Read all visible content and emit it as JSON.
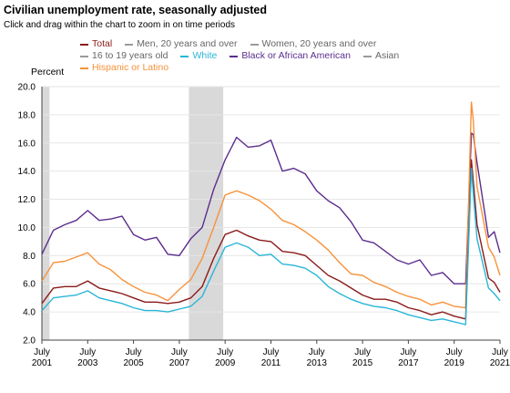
{
  "header": {
    "title": "Civilian unemployment rate, seasonally adjusted",
    "subtitle": "Click and drag within the chart to zoom in on time periods"
  },
  "legend": [
    {
      "label": "Total",
      "color": "#8b1a1a",
      "active": true
    },
    {
      "label": "Men, 20 years and over",
      "color": "#9a9a9a",
      "active": false
    },
    {
      "label": "Women, 20 years and over",
      "color": "#9a9a9a",
      "active": false
    },
    {
      "label": "16 to 19 years old",
      "color": "#9a9a9a",
      "active": false
    },
    {
      "label": "White",
      "color": "#29b6d8",
      "active": true
    },
    {
      "label": "Black or African American",
      "color": "#5b2d8e",
      "active": true
    },
    {
      "label": "Asian",
      "color": "#9a9a9a",
      "active": false
    },
    {
      "label": "Hispanic or Latino",
      "color": "#f7923a",
      "active": true
    }
  ],
  "chart_data": {
    "type": "line",
    "ylabel": "Percent",
    "ylim": [
      2.0,
      20.0
    ],
    "yticks": [
      "2.0",
      "4.0",
      "6.0",
      "8.0",
      "10.0",
      "12.0",
      "14.0",
      "16.0",
      "18.0",
      "20.0"
    ],
    "xlim": [
      "2001-07",
      "2021-07"
    ],
    "xticks": [
      {
        "month": "July",
        "year": "2001"
      },
      {
        "month": "July",
        "year": "2003"
      },
      {
        "month": "July",
        "year": "2005"
      },
      {
        "month": "July",
        "year": "2007"
      },
      {
        "month": "July",
        "year": "2009"
      },
      {
        "month": "July",
        "year": "2011"
      },
      {
        "month": "July",
        "year": "2013"
      },
      {
        "month": "July",
        "year": "2015"
      },
      {
        "month": "July",
        "year": "2017"
      },
      {
        "month": "July",
        "year": "2019"
      },
      {
        "month": "July",
        "year": "2021"
      }
    ],
    "recessions": [
      [
        "2001-03",
        "2001-11"
      ],
      [
        "2007-12",
        "2009-06"
      ]
    ],
    "series": [
      {
        "name": "Black or African American",
        "color": "#5b2d8e",
        "x": [
          "2001-07",
          "2002-01",
          "2002-07",
          "2003-01",
          "2003-07",
          "2004-01",
          "2004-07",
          "2005-01",
          "2005-07",
          "2006-01",
          "2006-07",
          "2007-01",
          "2007-07",
          "2008-01",
          "2008-07",
          "2009-01",
          "2009-07",
          "2010-01",
          "2010-07",
          "2011-01",
          "2011-07",
          "2012-01",
          "2012-07",
          "2013-01",
          "2013-07",
          "2014-01",
          "2014-07",
          "2015-01",
          "2015-07",
          "2016-01",
          "2016-07",
          "2017-01",
          "2017-07",
          "2018-01",
          "2018-07",
          "2019-01",
          "2019-07",
          "2020-01",
          "2020-04",
          "2020-05",
          "2020-07",
          "2021-01",
          "2021-04",
          "2021-07"
        ],
        "y": [
          8.1,
          9.8,
          10.2,
          10.5,
          11.2,
          10.5,
          10.6,
          10.8,
          9.5,
          9.1,
          9.3,
          8.1,
          8.0,
          9.2,
          10.0,
          12.7,
          14.8,
          16.4,
          15.7,
          15.8,
          16.2,
          14.0,
          14.2,
          13.8,
          12.6,
          11.9,
          11.4,
          10.4,
          9.1,
          8.9,
          8.3,
          7.7,
          7.4,
          7.7,
          6.6,
          6.8,
          6.0,
          6.0,
          16.7,
          16.6,
          14.6,
          9.3,
          9.7,
          8.2
        ]
      },
      {
        "name": "Hispanic or Latino",
        "color": "#f7923a",
        "x": [
          "2001-07",
          "2002-01",
          "2002-07",
          "2003-01",
          "2003-07",
          "2004-01",
          "2004-07",
          "2005-01",
          "2005-07",
          "2006-01",
          "2006-07",
          "2007-01",
          "2007-07",
          "2008-01",
          "2008-07",
          "2009-01",
          "2009-07",
          "2010-01",
          "2010-07",
          "2011-01",
          "2011-07",
          "2012-01",
          "2012-07",
          "2013-01",
          "2013-07",
          "2014-01",
          "2014-07",
          "2015-01",
          "2015-07",
          "2016-01",
          "2016-07",
          "2017-01",
          "2017-07",
          "2018-01",
          "2018-07",
          "2019-01",
          "2019-07",
          "2020-01",
          "2020-04",
          "2020-05",
          "2020-07",
          "2021-01",
          "2021-04",
          "2021-07"
        ],
        "y": [
          6.2,
          7.5,
          7.6,
          7.9,
          8.2,
          7.4,
          7.0,
          6.3,
          5.8,
          5.4,
          5.2,
          4.8,
          5.6,
          6.3,
          7.8,
          10.0,
          12.3,
          12.6,
          12.3,
          11.9,
          11.3,
          10.5,
          10.2,
          9.7,
          9.1,
          8.4,
          7.5,
          6.7,
          6.6,
          6.1,
          5.8,
          5.4,
          5.1,
          4.9,
          4.5,
          4.7,
          4.4,
          4.3,
          18.9,
          17.6,
          12.9,
          8.6,
          7.9,
          6.6
        ]
      },
      {
        "name": "Total",
        "color": "#8b1a1a",
        "x": [
          "2001-07",
          "2002-01",
          "2002-07",
          "2003-01",
          "2003-07",
          "2004-01",
          "2004-07",
          "2005-01",
          "2005-07",
          "2006-01",
          "2006-07",
          "2007-01",
          "2007-07",
          "2008-01",
          "2008-07",
          "2009-01",
          "2009-07",
          "2010-01",
          "2010-07",
          "2011-01",
          "2011-07",
          "2012-01",
          "2012-07",
          "2013-01",
          "2013-07",
          "2014-01",
          "2014-07",
          "2015-01",
          "2015-07",
          "2016-01",
          "2016-07",
          "2017-01",
          "2017-07",
          "2018-01",
          "2018-07",
          "2019-01",
          "2019-07",
          "2020-01",
          "2020-04",
          "2020-05",
          "2020-07",
          "2021-01",
          "2021-04",
          "2021-07"
        ],
        "y": [
          4.6,
          5.7,
          5.8,
          5.8,
          6.2,
          5.7,
          5.5,
          5.3,
          5.0,
          4.7,
          4.7,
          4.6,
          4.7,
          5.0,
          5.8,
          7.8,
          9.5,
          9.8,
          9.4,
          9.1,
          9.0,
          8.3,
          8.2,
          8.0,
          7.3,
          6.6,
          6.2,
          5.7,
          5.2,
          4.9,
          4.9,
          4.7,
          4.3,
          4.1,
          3.8,
          4.0,
          3.7,
          3.5,
          14.8,
          13.3,
          10.2,
          6.4,
          6.1,
          5.4
        ]
      },
      {
        "name": "White",
        "color": "#29b6d8",
        "x": [
          "2001-07",
          "2002-01",
          "2002-07",
          "2003-01",
          "2003-07",
          "2004-01",
          "2004-07",
          "2005-01",
          "2005-07",
          "2006-01",
          "2006-07",
          "2007-01",
          "2007-07",
          "2008-01",
          "2008-07",
          "2009-01",
          "2009-07",
          "2010-01",
          "2010-07",
          "2011-01",
          "2011-07",
          "2012-01",
          "2012-07",
          "2013-01",
          "2013-07",
          "2014-01",
          "2014-07",
          "2015-01",
          "2015-07",
          "2016-01",
          "2016-07",
          "2017-01",
          "2017-07",
          "2018-01",
          "2018-07",
          "2019-01",
          "2019-07",
          "2020-01",
          "2020-04",
          "2020-05",
          "2020-07",
          "2021-01",
          "2021-04",
          "2021-07"
        ],
        "y": [
          4.1,
          5.0,
          5.1,
          5.2,
          5.5,
          5.0,
          4.8,
          4.6,
          4.3,
          4.1,
          4.1,
          4.0,
          4.2,
          4.4,
          5.1,
          6.9,
          8.6,
          8.9,
          8.6,
          8.0,
          8.1,
          7.4,
          7.3,
          7.1,
          6.6,
          5.8,
          5.3,
          4.9,
          4.6,
          4.4,
          4.3,
          4.1,
          3.8,
          3.6,
          3.4,
          3.5,
          3.3,
          3.1,
          14.2,
          12.4,
          9.2,
          5.7,
          5.3,
          4.8
        ]
      }
    ]
  }
}
